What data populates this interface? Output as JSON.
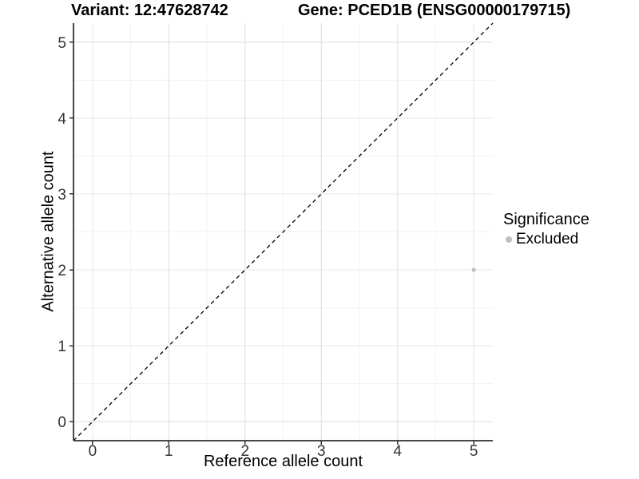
{
  "chart_data": {
    "type": "scatter",
    "title_left": "Variant: 12:47628742",
    "title_right": "Gene: PCED1B (ENSG00000179715)",
    "xlabel": "Reference allele count",
    "ylabel": "Alternative allele count",
    "xlim": [
      -0.25,
      5.25
    ],
    "ylim": [
      -0.25,
      5.25
    ],
    "x_ticks": [
      0,
      1,
      2,
      3,
      4,
      5
    ],
    "y_ticks": [
      0,
      1,
      2,
      3,
      4,
      5
    ],
    "x_minor_ticks": [
      0.5,
      1.5,
      2.5,
      3.5,
      4.5
    ],
    "y_minor_ticks": [
      0.5,
      1.5,
      2.5,
      3.5,
      4.5
    ],
    "grid": "major+minor",
    "identity_line": {
      "style": "dashed",
      "from": [
        -0.25,
        -0.25
      ],
      "to": [
        5.25,
        5.25
      ]
    },
    "series": [
      {
        "name": "Excluded",
        "color": "#bfbfbf",
        "point_radius": 2.5,
        "points": [
          {
            "x": 5,
            "y": 2
          }
        ]
      }
    ],
    "legend": {
      "title": "Significance",
      "position": "right",
      "items": [
        {
          "label": "Excluded",
          "color": "#bfbfbf"
        }
      ]
    }
  },
  "colors": {
    "background": "#ffffff",
    "grid_major": "#e7e7e7",
    "grid_minor": "#f2f2f2",
    "axis_line": "#474747",
    "tick_mark": "#333333",
    "tick_label": "#333333",
    "title_text": "#000000",
    "identity_line": "#000000"
  }
}
